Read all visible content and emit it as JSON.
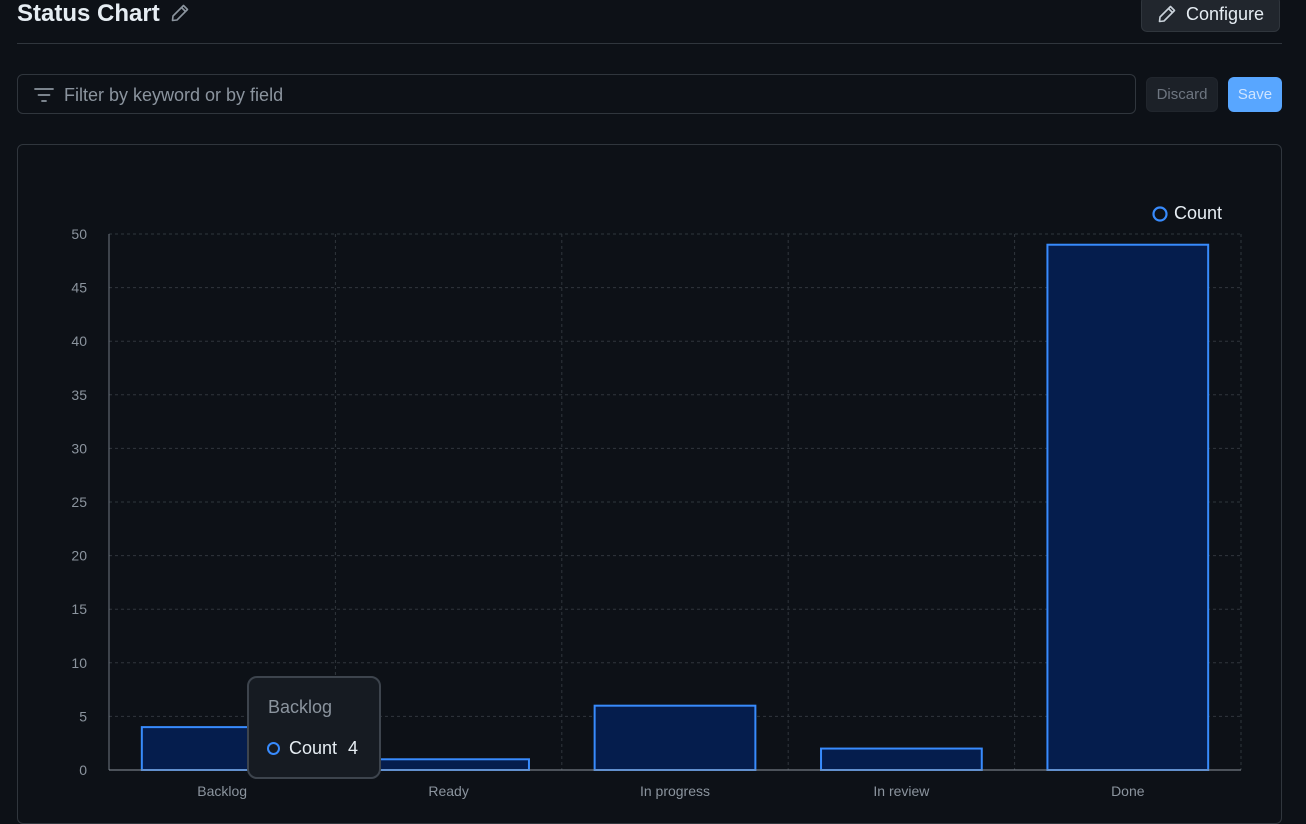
{
  "header": {
    "title": "Status Chart",
    "configure_label": "Configure"
  },
  "filter": {
    "placeholder": "Filter by keyword or by field",
    "discard_label": "Discard",
    "save_label": "Save"
  },
  "tooltip": {
    "category": "Backlog",
    "series": "Count",
    "value": "4"
  },
  "colors": {
    "bar_fill": "#051d4d",
    "bar_stroke": "#388bfd",
    "grid": "#30363d",
    "tick_text": "#8b949e",
    "accent": "#58a6ff"
  },
  "chart_data": {
    "type": "bar",
    "categories": [
      "Backlog",
      "Ready",
      "In progress",
      "In review",
      "Done"
    ],
    "series": [
      {
        "name": "Count",
        "values": [
          4,
          1,
          6,
          2,
          49
        ]
      }
    ],
    "title": "",
    "xlabel": "",
    "ylabel": "",
    "ylim": [
      0,
      50
    ],
    "yticks": [
      0,
      5,
      10,
      15,
      20,
      25,
      30,
      35,
      40,
      45,
      50
    ],
    "grid": true,
    "legend_position": "top-right"
  }
}
